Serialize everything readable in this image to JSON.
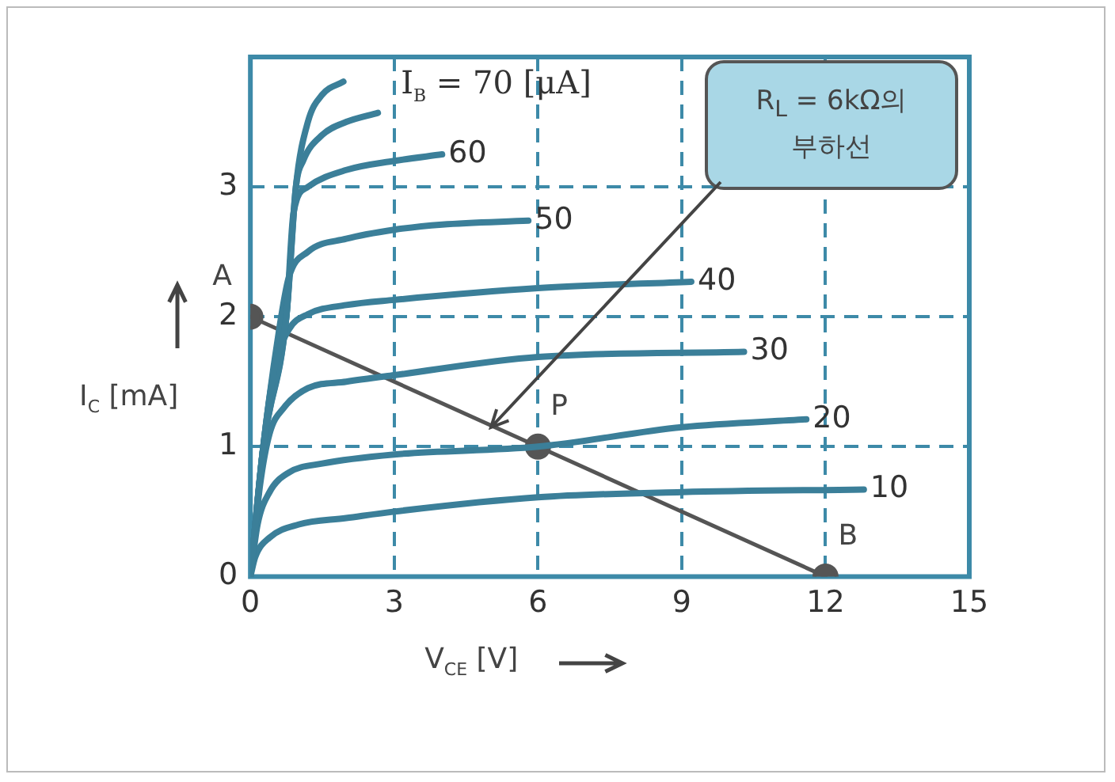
{
  "chart_data": {
    "type": "line",
    "xlabel": "V$_{CE}$ [V]",
    "ylabel": "I$_{C}$ [mA]",
    "xlim": [
      0,
      15
    ],
    "xticks": [
      0,
      3,
      6,
      9,
      12,
      15
    ],
    "ylim": [
      0,
      4
    ],
    "yticks": [
      0,
      1,
      2,
      3
    ],
    "grid": true,
    "legend": false,
    "marker": "none",
    "line_style": "solid",
    "series": [
      {
        "color": "#3b7f99",
        "x": [
          0,
          0.27,
          0.5,
          0.75,
          0.95,
          1.2,
          1.5,
          1.94
        ],
        "values": [
          0,
          1,
          1.6,
          2,
          3,
          3.5,
          3.71,
          3.81
        ]
      },
      {
        "color": "#3b7f99",
        "x": [
          0,
          0.27,
          0.75,
          0.95,
          1.1,
          1.5,
          2,
          2.66
        ],
        "values": [
          0,
          1,
          2,
          3,
          3.2,
          3.4,
          3.5,
          3.57
        ]
      },
      {
        "name": "60",
        "color": "#3b7f99",
        "x": [
          0,
          0.27,
          0.75,
          0.9,
          1.2,
          2,
          3,
          4
        ],
        "values": [
          0,
          1,
          2,
          2.8,
          3,
          3.13,
          3.2,
          3.25
        ]
      },
      {
        "name": "50",
        "color": "#3b7f99",
        "x": [
          0,
          0.27,
          0.6,
          0.8,
          1.2,
          2,
          3,
          4,
          5.8
        ],
        "values": [
          0,
          1,
          1.9,
          2.3,
          2.5,
          2.6,
          2.67,
          2.71,
          2.74
        ]
      },
      {
        "name": "40",
        "color": "#3b7f99",
        "x": [
          0,
          0.27,
          0.5,
          0.8,
          1.2,
          2,
          3,
          6,
          9.2
        ],
        "values": [
          0,
          1,
          1.6,
          1.9,
          2.02,
          2.09,
          2.13,
          2.22,
          2.27
        ]
      },
      {
        "name": "30",
        "color": "#3b7f99",
        "x": [
          0,
          0.2,
          0.4,
          0.7,
          1.2,
          2,
          3,
          6,
          10.3
        ],
        "values": [
          0,
          0.7,
          1.1,
          1.3,
          1.45,
          1.5,
          1.55,
          1.69,
          1.73
        ]
      },
      {
        "name": "20",
        "color": "#3b7f99",
        "x": [
          0,
          0.15,
          0.4,
          0.8,
          1.5,
          3,
          6,
          9,
          11.6
        ],
        "values": [
          0,
          0.4,
          0.65,
          0.8,
          0.87,
          0.94,
          1,
          1.15,
          1.21
        ]
      },
      {
        "name": "10",
        "color": "#3b7f99",
        "x": [
          0,
          0.1,
          0.4,
          1,
          2,
          3,
          6,
          9,
          12.8
        ],
        "values": [
          0,
          0.15,
          0.3,
          0.4,
          0.45,
          0.5,
          0.61,
          0.65,
          0.67
        ]
      },
      {
        "color": "#555555",
        "marker": "circle",
        "x": [
          0,
          6,
          12
        ],
        "values": [
          2,
          1,
          0
        ]
      }
    ],
    "annotations": [
      "I$_{B}$ = 70 [μA]",
      {
        "text": "A",
        "x": 0,
        "y": 2
      },
      {
        "text": "P",
        "x": 6,
        "y": 1
      },
      {
        "text": "B",
        "x": 12,
        "y": 0
      },
      "R$_{L}$ = 6kΩ의 부하선"
    ]
  }
}
